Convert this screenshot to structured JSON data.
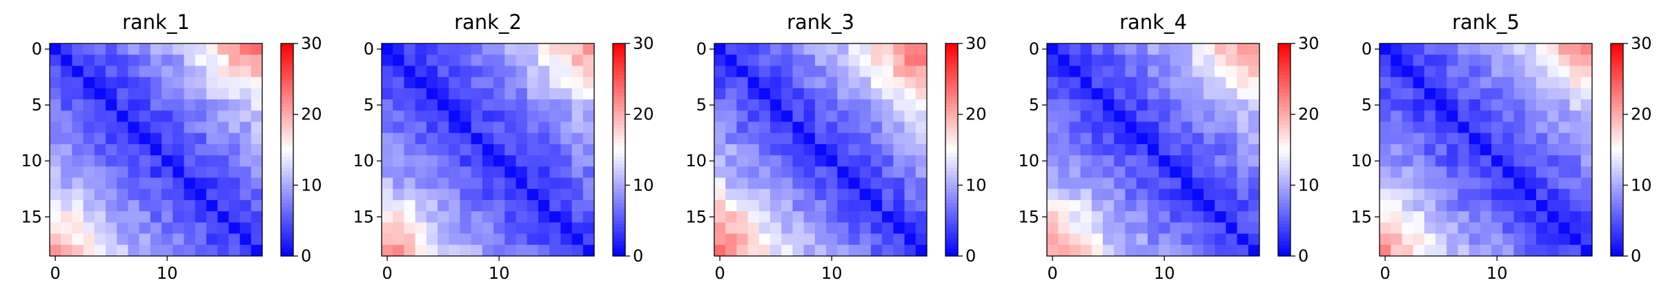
{
  "chart_data": [
    {
      "type": "heatmap",
      "title": "rank_1",
      "size": 19,
      "x_ticks": [
        "0",
        "10"
      ],
      "y_ticks": [
        "0",
        "5",
        "10",
        "15"
      ],
      "colorbar": {
        "min": 0,
        "max": 30,
        "ticks": [
          "0",
          "10",
          "20",
          "30"
        ],
        "colormap": "bwr"
      },
      "near_value": 3,
      "far_value": 16,
      "corner_value": 22,
      "bottom_left_value": 20,
      "top_right_value": 24
    },
    {
      "type": "heatmap",
      "title": "rank_2",
      "size": 19,
      "x_ticks": [
        "0",
        "10"
      ],
      "y_ticks": [
        "0",
        "5",
        "10",
        "15"
      ],
      "colorbar": {
        "min": 0,
        "max": 30,
        "ticks": [
          "0",
          "10",
          "20",
          "30"
        ],
        "colormap": "bwr"
      },
      "near_value": 3,
      "far_value": 15,
      "corner_value": 24,
      "bottom_left_value": 23,
      "top_right_value": 22
    },
    {
      "type": "heatmap",
      "title": "rank_3",
      "size": 19,
      "x_ticks": [
        "0",
        "10"
      ],
      "y_ticks": [
        "0",
        "5",
        "10",
        "15"
      ],
      "colorbar": {
        "min": 0,
        "max": 30,
        "ticks": [
          "0",
          "10",
          "20",
          "30"
        ],
        "colormap": "bwr"
      },
      "near_value": 3,
      "far_value": 18,
      "corner_value": 25,
      "bottom_left_value": 24,
      "top_right_value": 25
    },
    {
      "type": "heatmap",
      "title": "rank_4",
      "size": 19,
      "x_ticks": [
        "0",
        "10"
      ],
      "y_ticks": [
        "0",
        "5",
        "10",
        "15"
      ],
      "colorbar": {
        "min": 0,
        "max": 30,
        "ticks": [
          "0",
          "10",
          "20",
          "30"
        ],
        "colormap": "bwr"
      },
      "near_value": 3,
      "far_value": 16,
      "corner_value": 24,
      "bottom_left_value": 22,
      "top_right_value": 23
    },
    {
      "type": "heatmap",
      "title": "rank_5",
      "size": 19,
      "x_ticks": [
        "0",
        "10"
      ],
      "y_ticks": [
        "0",
        "5",
        "10",
        "15"
      ],
      "colorbar": {
        "min": 0,
        "max": 30,
        "ticks": [
          "0",
          "10",
          "20",
          "30"
        ],
        "colormap": "bwr"
      },
      "near_value": 3,
      "far_value": 16,
      "corner_value": 24,
      "bottom_left_value": 22,
      "top_right_value": 23
    }
  ]
}
